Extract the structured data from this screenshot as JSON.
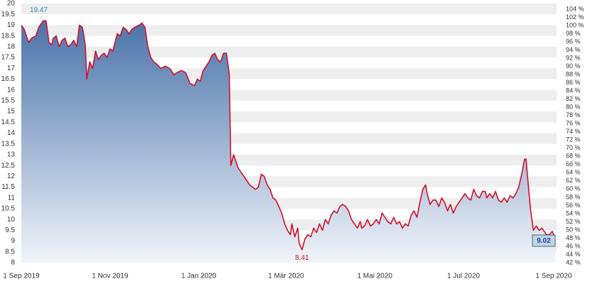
{
  "chart_data": {
    "type": "area",
    "x": [
      "2019-09-01",
      "2019-09-03",
      "2019-09-06",
      "2019-09-08",
      "2019-09-11",
      "2019-09-13",
      "2019-09-16",
      "2019-09-18",
      "2019-09-20",
      "2019-09-22",
      "2019-09-23",
      "2019-09-25",
      "2019-09-27",
      "2019-09-29",
      "2019-10-01",
      "2019-10-03",
      "2019-10-05",
      "2019-10-07",
      "2019-10-09",
      "2019-10-11",
      "2019-10-13",
      "2019-10-15",
      "2019-10-16",
      "2019-10-18",
      "2019-10-20",
      "2019-10-22",
      "2019-10-24",
      "2019-10-26",
      "2019-10-28",
      "2019-10-30",
      "2019-11-01",
      "2019-11-03",
      "2019-11-04",
      "2019-11-06",
      "2019-11-08",
      "2019-11-10",
      "2019-11-12",
      "2019-11-14",
      "2019-11-16",
      "2019-11-18",
      "2019-11-21",
      "2019-11-23",
      "2019-11-25",
      "2019-11-27",
      "2019-11-29",
      "2019-12-01",
      "2019-12-03",
      "2019-12-06",
      "2019-12-09",
      "2019-12-12",
      "2019-12-15",
      "2019-12-17",
      "2019-12-20",
      "2019-12-23",
      "2019-12-26",
      "2019-12-29",
      "2019-12-31",
      "2020-01-02",
      "2020-01-04",
      "2020-01-06",
      "2020-01-08",
      "2020-01-10",
      "2020-01-12",
      "2020-01-14",
      "2020-01-16",
      "2020-01-18",
      "2020-01-20",
      "2020-01-21",
      "2020-01-22",
      "2020-01-23",
      "2020-01-25",
      "2020-01-27",
      "2020-01-28",
      "2020-01-30",
      "2020-02-01",
      "2020-02-03",
      "2020-02-05",
      "2020-02-07",
      "2020-02-09",
      "2020-02-11",
      "2020-02-13",
      "2020-02-15",
      "2020-02-17",
      "2020-02-19",
      "2020-02-21",
      "2020-02-23",
      "2020-02-25",
      "2020-02-27",
      "2020-02-29",
      "2020-03-02",
      "2020-03-04",
      "2020-03-05",
      "2020-03-07",
      "2020-03-09",
      "2020-03-10",
      "2020-03-12",
      "2020-03-14",
      "2020-03-16",
      "2020-03-18",
      "2020-03-20",
      "2020-03-22",
      "2020-03-24",
      "2020-03-26",
      "2020-03-28",
      "2020-03-30",
      "2020-04-01",
      "2020-04-03",
      "2020-04-05",
      "2020-04-07",
      "2020-04-09",
      "2020-04-11",
      "2020-04-13",
      "2020-04-15",
      "2020-04-17",
      "2020-04-19",
      "2020-04-21",
      "2020-04-22",
      "2020-04-24",
      "2020-04-26",
      "2020-04-28",
      "2020-04-30",
      "2020-05-02",
      "2020-05-04",
      "2020-05-06",
      "2020-05-08",
      "2020-05-10",
      "2020-05-12",
      "2020-05-14",
      "2020-05-16",
      "2020-05-18",
      "2020-05-20",
      "2020-05-22",
      "2020-05-24",
      "2020-05-26",
      "2020-05-28",
      "2020-05-30",
      "2020-06-01",
      "2020-06-03",
      "2020-06-05",
      "2020-06-06",
      "2020-06-08",
      "2020-06-10",
      "2020-06-12",
      "2020-06-14",
      "2020-06-16",
      "2020-06-18",
      "2020-06-20",
      "2020-06-22",
      "2020-06-24",
      "2020-06-26",
      "2020-06-28",
      "2020-06-30",
      "2020-07-02",
      "2020-07-04",
      "2020-07-06",
      "2020-07-08",
      "2020-07-10",
      "2020-07-12",
      "2020-07-14",
      "2020-07-16",
      "2020-07-17",
      "2020-07-19",
      "2020-07-21",
      "2020-07-23",
      "2020-07-25",
      "2020-07-27",
      "2020-07-29",
      "2020-07-31",
      "2020-08-02",
      "2020-08-04",
      "2020-08-06",
      "2020-08-08",
      "2020-08-10",
      "2020-08-12",
      "2020-08-13",
      "2020-08-14",
      "2020-08-16",
      "2020-08-18",
      "2020-08-20",
      "2020-08-22",
      "2020-08-24",
      "2020-08-26",
      "2020-08-27",
      "2020-08-29",
      "2020-08-31",
      "2020-09-01",
      "2020-09-02"
    ],
    "series": [
      {
        "color": "#d3102a",
        "fill_top": "#3f6aa5",
        "fill_bottom": "#f1f4f9",
        "values": [
          19.0,
          18.8,
          18.2,
          18.4,
          18.5,
          18.9,
          19.2,
          19.2,
          18.2,
          18.1,
          18.4,
          18.5,
          18.0,
          18.3,
          18.4,
          18.0,
          18.1,
          18.3,
          18.0,
          19.0,
          18.9,
          18.1,
          16.5,
          17.3,
          17.0,
          17.8,
          17.4,
          17.6,
          17.7,
          17.5,
          17.9,
          17.8,
          18.1,
          18.6,
          18.5,
          18.9,
          18.8,
          18.6,
          18.8,
          18.9,
          19.0,
          19.1,
          18.9,
          18.0,
          17.5,
          17.3,
          17.2,
          17.0,
          17.1,
          17.0,
          16.7,
          16.8,
          16.9,
          16.8,
          16.3,
          16.2,
          16.5,
          16.4,
          16.9,
          17.1,
          17.3,
          17.6,
          17.7,
          17.4,
          17.3,
          17.7,
          17.7,
          17.2,
          16.7,
          12.5,
          13.0,
          12.6,
          12.4,
          12.2,
          12.0,
          11.8,
          11.6,
          11.5,
          11.4,
          11.5,
          12.1,
          12.0,
          11.6,
          11.4,
          11.0,
          10.9,
          10.6,
          10.3,
          9.8,
          9.5,
          9.3,
          9.8,
          9.2,
          9.6,
          8.9,
          8.6,
          9.1,
          9.3,
          9.2,
          9.6,
          9.4,
          9.8,
          9.5,
          10.0,
          9.8,
          10.2,
          10.4,
          10.3,
          10.6,
          10.7,
          10.6,
          10.4,
          10.0,
          9.8,
          9.6,
          9.9,
          9.6,
          9.7,
          10.0,
          9.7,
          9.8,
          10.0,
          9.8,
          10.3,
          10.1,
          9.9,
          9.8,
          10.1,
          9.8,
          9.9,
          9.6,
          9.8,
          9.7,
          10.2,
          10.4,
          10.1,
          10.8,
          11.4,
          11.6,
          11.2,
          10.7,
          10.9,
          10.9,
          10.6,
          11.0,
          10.8,
          10.4,
          10.7,
          10.3,
          10.6,
          10.8,
          11.0,
          11.2,
          11.0,
          10.9,
          11.4,
          11.1,
          11.0,
          11.3,
          11.3,
          11.0,
          11.2,
          11.0,
          11.3,
          10.9,
          10.8,
          11.0,
          10.8,
          11.1,
          11.0,
          11.2,
          11.5,
          12.1,
          12.8,
          12.8,
          12.0,
          10.5,
          9.5,
          9.7,
          9.5,
          9.6,
          9.4,
          9.3,
          9.3,
          9.45,
          9.3,
          9.02
        ]
      }
    ],
    "xlim": [
      "2019-09-01",
      "2020-09-03"
    ],
    "xticks": [
      {
        "value": "2019-09-01",
        "label": "1 Sep 2019"
      },
      {
        "value": "2019-11-01",
        "label": "1 Nov 2019"
      },
      {
        "value": "2020-01-01",
        "label": "1 Jan 2020"
      },
      {
        "value": "2020-03-01",
        "label": "1 Mär 2020"
      },
      {
        "value": "2020-05-01",
        "label": "1 Mai 2020"
      },
      {
        "value": "2020-07-01",
        "label": "1 Jul 2020"
      },
      {
        "value": "2020-09-01",
        "label": "1 Sep 2020"
      }
    ],
    "ylim": [
      8,
      20
    ],
    "yticks": [
      20,
      19.5,
      19,
      18.5,
      18,
      17.5,
      17,
      16.5,
      16,
      15.5,
      15,
      14.5,
      14,
      13.5,
      13,
      12.5,
      12,
      11.5,
      11,
      10.5,
      10,
      9.5,
      9,
      8.5,
      8
    ],
    "y2lim": [
      42,
      105.4
    ],
    "y2ticks": [
      {
        "value": 104,
        "label": "104 %"
      },
      {
        "value": 102,
        "label": "102 %"
      },
      {
        "value": 100,
        "label": "100 %"
      },
      {
        "value": 98,
        "label": "98 %"
      },
      {
        "value": 96,
        "label": "96 %"
      },
      {
        "value": 94,
        "label": "94 %"
      },
      {
        "value": 92,
        "label": "92 %"
      },
      {
        "value": 90,
        "label": "90 %"
      },
      {
        "value": 88,
        "label": "88 %"
      },
      {
        "value": 86,
        "label": "86 %"
      },
      {
        "value": 84,
        "label": "84 %"
      },
      {
        "value": 82,
        "label": "82 %"
      },
      {
        "value": 80,
        "label": "80 %"
      },
      {
        "value": 78,
        "label": "78 %"
      },
      {
        "value": 76,
        "label": "76 %"
      },
      {
        "value": 74,
        "label": "74 %"
      },
      {
        "value": 72,
        "label": "72 %"
      },
      {
        "value": 70,
        "label": "70 %"
      },
      {
        "value": 68,
        "label": "68 %"
      },
      {
        "value": 66,
        "label": "66 %"
      },
      {
        "value": 64,
        "label": "64 %"
      },
      {
        "value": 62,
        "label": "62 %"
      },
      {
        "value": 60,
        "label": "60 %"
      },
      {
        "value": 58,
        "label": "58 %"
      },
      {
        "value": 56,
        "label": "56 %"
      },
      {
        "value": 54,
        "label": "54 %"
      },
      {
        "value": 52,
        "label": "52 %"
      },
      {
        "value": 50,
        "label": "50 %"
      },
      {
        "value": 48,
        "label": "48 %"
      },
      {
        "value": 46,
        "label": "46 %"
      },
      {
        "value": 44,
        "label": "44 %"
      },
      {
        "value": 42,
        "label": "42 %"
      }
    ],
    "grid": true,
    "high": {
      "x": "2019-09-13",
      "value": 19.47
    },
    "low": {
      "x": "2020-03-12",
      "value": 8.41
    },
    "last": 9.02
  }
}
